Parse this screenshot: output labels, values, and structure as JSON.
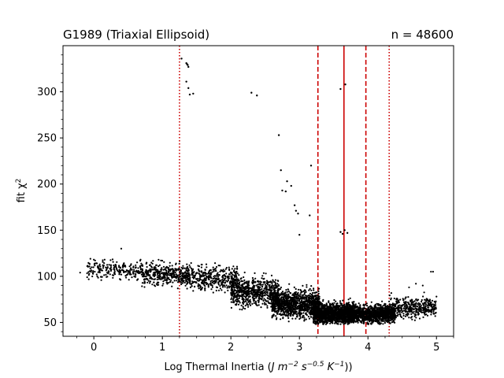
{
  "chart_data": {
    "type": "scatter",
    "title_left": "G1989 (Triaxial Ellipsoid)",
    "title_right": "n = 48600",
    "xlabel": "Log Thermal Inertia (J m⁻² s⁻⁰·⁵ K⁻¹))",
    "xlabel_parts": {
      "prefix": "Log Thermal Inertia (",
      "unit_J": "J m",
      "exp1": "−2",
      "unit_s": " s",
      "exp2": "−0.5",
      "unit_K": " K",
      "exp3": "−1",
      "suffix": "))"
    },
    "ylabel_parts": {
      "prefix": "fit χ",
      "exp": "2"
    },
    "xlim": [
      -0.45,
      5.25
    ],
    "ylim": [
      35,
      350
    ],
    "x_ticks": [
      0,
      1,
      2,
      3,
      4,
      5
    ],
    "y_ticks": [
      50,
      100,
      150,
      200,
      250,
      300
    ],
    "point_color": "#000000",
    "line_color": "#cc0000",
    "reference_lines": [
      {
        "x": 3.65,
        "style": "solid"
      },
      {
        "x": 3.27,
        "style": "dashed"
      },
      {
        "x": 3.97,
        "style": "dashed"
      },
      {
        "x": 1.25,
        "style": "dotted"
      },
      {
        "x": 4.31,
        "style": "dotted"
      }
    ],
    "outliers": [
      [
        1.28,
        336
      ],
      [
        1.35,
        331
      ],
      [
        1.37,
        329
      ],
      [
        1.38,
        327
      ],
      [
        1.36,
        330
      ],
      [
        1.35,
        311
      ],
      [
        1.38,
        304
      ],
      [
        1.4,
        297
      ],
      [
        1.45,
        298
      ],
      [
        2.3,
        299
      ],
      [
        2.38,
        296
      ],
      [
        2.7,
        253
      ],
      [
        2.73,
        215
      ],
      [
        2.75,
        193
      ],
      [
        2.8,
        192
      ],
      [
        2.82,
        203
      ],
      [
        2.88,
        198
      ],
      [
        2.93,
        177
      ],
      [
        2.95,
        171
      ],
      [
        2.98,
        168
      ],
      [
        3.0,
        145
      ],
      [
        3.15,
        166
      ],
      [
        3.17,
        220
      ],
      [
        3.6,
        303
      ],
      [
        3.67,
        308
      ],
      [
        3.6,
        148
      ],
      [
        3.63,
        146
      ],
      [
        3.66,
        150
      ],
      [
        3.7,
        147
      ]
    ],
    "clusters": [
      {
        "x_range": [
          -0.1,
          0.7
        ],
        "y_center": 107,
        "y_spread": 8,
        "count": 220
      },
      {
        "x_range": [
          0.7,
          1.4
        ],
        "y_center": 102,
        "y_spread": 10,
        "count": 420
      },
      {
        "x_range": [
          1.4,
          2.1
        ],
        "y_center": 98,
        "y_spread": 11,
        "count": 380
      },
      {
        "x_range": [
          2.0,
          2.7
        ],
        "y_center": 83,
        "y_spread": 12,
        "count": 700
      },
      {
        "x_range": [
          2.6,
          3.3
        ],
        "y_center": 70,
        "y_spread": 12,
        "count": 1100
      },
      {
        "x_range": [
          3.2,
          3.8
        ],
        "y_center": 60,
        "y_spread": 9,
        "count": 1400
      },
      {
        "x_range": [
          3.7,
          4.4
        ],
        "y_center": 59,
        "y_spread": 8,
        "count": 1200
      },
      {
        "x_range": [
          4.3,
          5.0
        ],
        "y_center": 66,
        "y_spread": 9,
        "count": 400
      }
    ],
    "tail_points": [
      [
        -0.2,
        104
      ],
      [
        -0.05,
        119
      ],
      [
        0.0,
        118
      ],
      [
        0.05,
        100
      ],
      [
        0.4,
        130
      ],
      [
        4.8,
        90
      ],
      [
        4.95,
        105
      ],
      [
        4.92,
        105
      ],
      [
        5.0,
        78
      ],
      [
        4.6,
        88
      ],
      [
        4.7,
        92
      ]
    ]
  }
}
